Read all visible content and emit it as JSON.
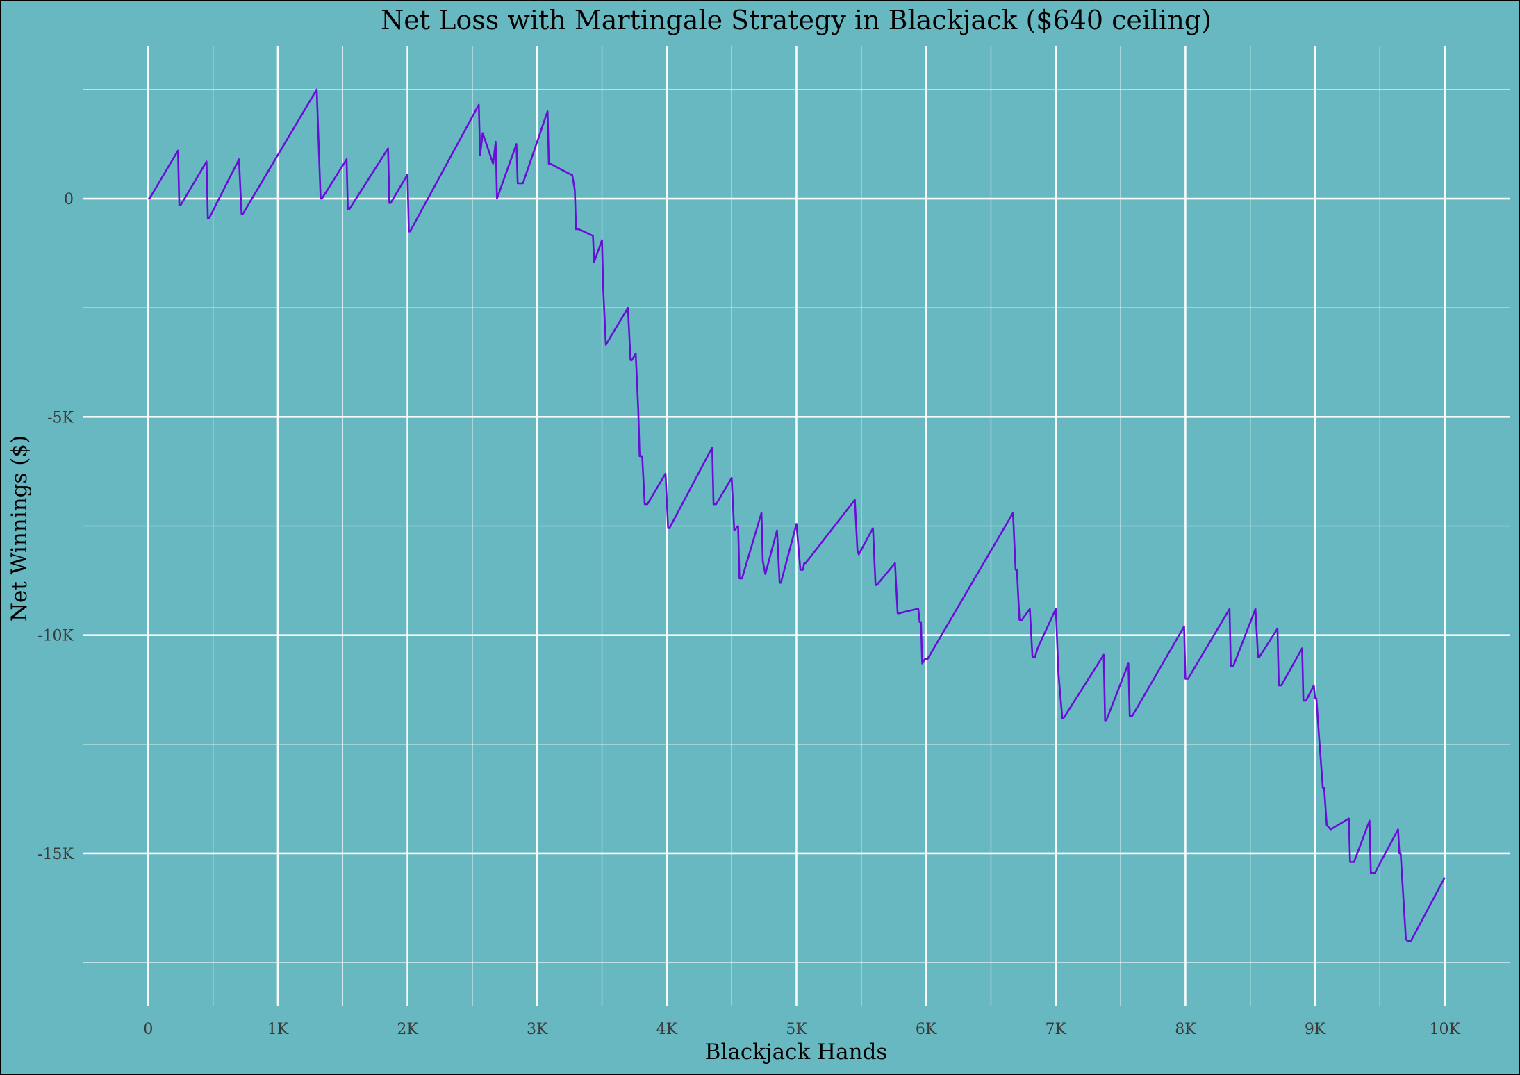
{
  "chart_data": {
    "type": "line",
    "title": "Net Loss with Martingale Strategy in Blackjack ($640 ceiling)",
    "xlabel": "Blackjack Hands",
    "ylabel": "Net Winnings ($)",
    "xlim": [
      -500,
      10500
    ],
    "ylim": [
      -18500,
      3500
    ],
    "xticks": [
      0,
      1000,
      2000,
      3000,
      4000,
      5000,
      6000,
      7000,
      8000,
      9000,
      10000
    ],
    "xtick_labels": [
      "0",
      "1K",
      "2K",
      "3K",
      "4K",
      "5K",
      "6K",
      "7K",
      "8K",
      "9K",
      "10K"
    ],
    "yticks": [
      0,
      -5000,
      -10000,
      -15000
    ],
    "ytick_labels": [
      "0",
      "-5K",
      "-10K",
      "-15K"
    ],
    "grid": true,
    "legend": "none",
    "colors": {
      "background": "#68b8c2",
      "line": "#6a0dd6",
      "grid": "#ffffff"
    },
    "series": [
      {
        "x": [
          0,
          10,
          230,
          240,
          250,
          450,
          460,
          470,
          700,
          720,
          730,
          1300,
          1330,
          1340,
          1530,
          1540,
          1550,
          1850,
          1860,
          1870,
          2000,
          2010,
          2020,
          2550,
          2560,
          2580,
          2660,
          2680,
          2690,
          2840,
          2850,
          2890,
          3080,
          3090,
          3100,
          3260,
          3270,
          3290,
          3300,
          3320,
          3430,
          3440,
          3500,
          3510,
          3530,
          3700,
          3720,
          3730,
          3760,
          3780,
          3790,
          3810,
          3830,
          3850,
          3990,
          4010,
          4020,
          4350,
          4360,
          4380,
          4500,
          4520,
          4550,
          4560,
          4580,
          4730,
          4740,
          4760,
          4850,
          4870,
          4880,
          5000,
          5030,
          5050,
          5060,
          5070,
          5450,
          5470,
          5480,
          5590,
          5610,
          5620,
          5760,
          5780,
          5790,
          5930,
          5940,
          5950,
          5960,
          5970,
          5990,
          6010,
          6670,
          6690,
          6700,
          6720,
          6740,
          6750,
          6800,
          6820,
          6840,
          6860,
          7000,
          7020,
          7050,
          7060,
          7370,
          7380,
          7390,
          7560,
          7570,
          7590,
          7990,
          8000,
          8020,
          8340,
          8350,
          8370,
          8540,
          8560,
          8570,
          8710,
          8720,
          8740,
          8900,
          8910,
          8930,
          8990,
          9000,
          9010,
          9030,
          9060,
          9070,
          9090,
          9120,
          9260,
          9270,
          9300,
          9420,
          9430,
          9460,
          9640,
          9650,
          9660,
          9700,
          9710,
          9740,
          10000
        ],
        "y": [
          0,
          0,
          1100,
          -150,
          -150,
          850,
          -450,
          -450,
          900,
          -350,
          -350,
          2500,
          0,
          0,
          900,
          -250,
          -250,
          1150,
          -100,
          -100,
          550,
          -750,
          -750,
          2150,
          1000,
          1500,
          800,
          1300,
          0,
          1250,
          350,
          350,
          2000,
          800,
          800,
          550,
          550,
          200,
          -700,
          -700,
          -850,
          -1450,
          -950,
          -2100,
          -3350,
          -2500,
          -3700,
          -3700,
          -3550,
          -4850,
          -5900,
          -5900,
          -7000,
          -7000,
          -6300,
          -7550,
          -7550,
          -5700,
          -7000,
          -7000,
          -6400,
          -7600,
          -7500,
          -8700,
          -8700,
          -7200,
          -8300,
          -8600,
          -7600,
          -8800,
          -8800,
          -7450,
          -8500,
          -8500,
          -8350,
          -8350,
          -6900,
          -8050,
          -8150,
          -7550,
          -8850,
          -8850,
          -8350,
          -9500,
          -9500,
          -9400,
          -9400,
          -9700,
          -9700,
          -10650,
          -10550,
          -10550,
          -7200,
          -8500,
          -8500,
          -9650,
          -9650,
          -9600,
          -9400,
          -10500,
          -10500,
          -10300,
          -9400,
          -10850,
          -11900,
          -11900,
          -10450,
          -11950,
          -11950,
          -10650,
          -11850,
          -11850,
          -9800,
          -11000,
          -11000,
          -9400,
          -10700,
          -10700,
          -9400,
          -10500,
          -10500,
          -9850,
          -11150,
          -11150,
          -10300,
          -11500,
          -11500,
          -11150,
          -11450,
          -11450,
          -12300,
          -13500,
          -13500,
          -14350,
          -14450,
          -14200,
          -15200,
          -15200,
          -14250,
          -15450,
          -15450,
          -14450,
          -15000,
          -15000,
          -16950,
          -17000,
          -17000,
          -15550
        ]
      }
    ]
  }
}
